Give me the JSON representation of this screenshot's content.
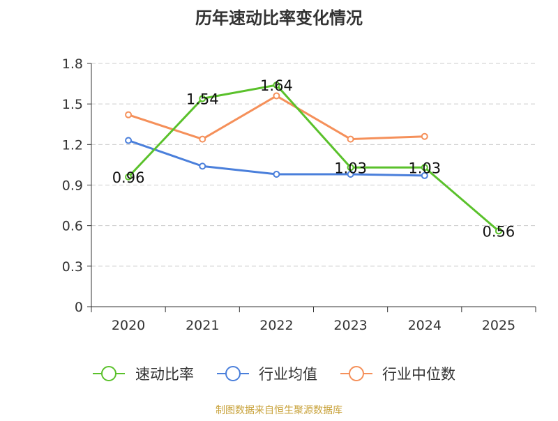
{
  "chart_data": {
    "type": "line",
    "title": "历年速动比率变化情况",
    "categories": [
      "2020",
      "2021",
      "2022",
      "2023",
      "2024",
      "2025"
    ],
    "y_ticks": [
      "0",
      "0.3",
      "0.6",
      "0.9",
      "1.2",
      "1.5",
      "1.8"
    ],
    "ylim": [
      0,
      1.8
    ],
    "grid": true,
    "legend_position": "bottom",
    "series": [
      {
        "name": "速动比率",
        "color": "#5ac12b",
        "values": [
          0.96,
          1.54,
          1.64,
          1.03,
          1.03,
          0.56
        ],
        "labels": [
          "0.96",
          "1.54",
          "1.64",
          "1.03",
          "1.03",
          "0.56"
        ]
      },
      {
        "name": "行业均值",
        "color": "#4a7fdb",
        "values": [
          1.23,
          1.04,
          0.98,
          0.98,
          0.97,
          null
        ]
      },
      {
        "name": "行业中位数",
        "color": "#f5905a",
        "values": [
          1.42,
          1.24,
          1.56,
          1.24,
          1.26,
          null
        ]
      }
    ],
    "source": "制图数据来自恒生聚源数据库"
  }
}
